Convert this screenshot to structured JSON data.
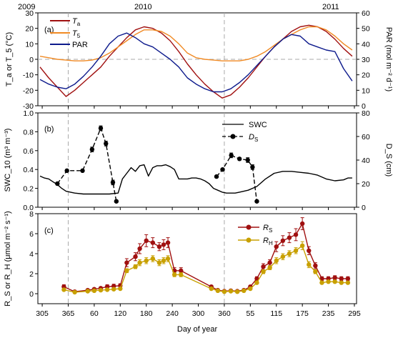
{
  "chart_data": [
    {
      "panel": "(a)",
      "type": "line",
      "ylabel": "T_a or T_5 (°C)",
      "y2label": "PAR (mol m⁻² d⁻¹)",
      "ylim": [
        -30,
        30
      ],
      "y2lim": [
        0,
        60
      ],
      "yticks": [
        "-30",
        "-20",
        "-10",
        "0",
        "10",
        "20",
        "30"
      ],
      "y2ticks": [
        "0",
        "10",
        "20",
        "30",
        "40",
        "50",
        "60"
      ],
      "zero_line": true,
      "legend": [
        "T_a",
        "T_5",
        "PAR"
      ],
      "legend_position": "top-left",
      "colors": {
        "Ta": "#a01010",
        "T5": "#f08a24",
        "PAR": "#0d1a8c"
      },
      "series": [
        {
          "name": "T_a",
          "axis": "left",
          "color": "#a01010",
          "x": [
            300,
            320,
            340,
            360,
            380,
            400,
            420,
            440,
            460,
            480,
            500,
            520,
            540,
            560,
            580,
            600,
            620,
            640,
            660,
            680,
            700,
            720,
            740,
            760,
            780,
            800,
            820,
            840,
            860,
            880,
            900,
            920,
            940,
            960,
            980,
            1000,
            1020
          ],
          "y": [
            -5,
            -12,
            -18,
            -24,
            -20,
            -15,
            -10,
            -5,
            2,
            8,
            14,
            19,
            21,
            20,
            17,
            12,
            5,
            -3,
            -10,
            -16,
            -21,
            -25,
            -23,
            -18,
            -12,
            -5,
            2,
            8,
            13,
            18,
            21,
            22,
            21,
            18,
            13,
            7,
            2
          ]
        },
        {
          "name": "T_5",
          "axis": "left",
          "color": "#f08a24",
          "x": [
            300,
            320,
            340,
            360,
            380,
            400,
            420,
            440,
            460,
            480,
            500,
            520,
            540,
            560,
            580,
            600,
            620,
            640,
            660,
            680,
            700,
            720,
            740,
            760,
            780,
            800,
            820,
            840,
            860,
            880,
            900,
            920,
            940,
            960,
            980,
            1000,
            1020
          ],
          "y": [
            2,
            1,
            0,
            -0.5,
            -1,
            -1,
            -0.5,
            1,
            4,
            8,
            12,
            16,
            19,
            19,
            18,
            15,
            10,
            4,
            1,
            0,
            -0.5,
            -1,
            -1,
            -1,
            0,
            2,
            5,
            9,
            13,
            16,
            19,
            21,
            21,
            19,
            15,
            10,
            6
          ]
        },
        {
          "name": "PAR",
          "axis": "right",
          "color": "#0d1a8c",
          "x": [
            300,
            320,
            340,
            360,
            380,
            400,
            420,
            440,
            460,
            480,
            500,
            520,
            540,
            560,
            580,
            600,
            620,
            640,
            660,
            680,
            700,
            720,
            740,
            760,
            780,
            800,
            820,
            840,
            860,
            880,
            900,
            920,
            940,
            960,
            980,
            1000,
            1020
          ],
          "y": [
            17,
            14,
            12,
            11,
            14,
            19,
            25,
            32,
            40,
            45,
            47,
            44,
            40,
            38,
            34,
            30,
            25,
            18,
            14,
            11,
            9,
            9,
            11,
            15,
            20,
            26,
            32,
            38,
            43,
            46,
            45,
            40,
            38,
            36,
            35,
            24,
            16
          ]
        }
      ]
    },
    {
      "panel": "(b)",
      "type": "line",
      "ylabel": "SWC_10 (m³ m⁻³)",
      "y2label": "D_S (cm)",
      "ylim": [
        0,
        1.0
      ],
      "y2lim": [
        0,
        80
      ],
      "yticks": [
        "0.0",
        "0.2",
        "0.4",
        "0.6",
        "0.8",
        "1.0"
      ],
      "y2ticks": [
        "0",
        "20",
        "40",
        "60",
        "80"
      ],
      "legend": [
        "SWC",
        "D_S"
      ],
      "legend_position": "top-right",
      "series": [
        {
          "name": "SWC",
          "axis": "left",
          "color": "#000000",
          "x": [
            300,
            310,
            320,
            330,
            340,
            350,
            360,
            370,
            380,
            400,
            420,
            440,
            460,
            480,
            490,
            500,
            510,
            520,
            530,
            540,
            550,
            560,
            570,
            580,
            590,
            600,
            610,
            620,
            630,
            640,
            650,
            660,
            670,
            680,
            690,
            700,
            710,
            720,
            730,
            740,
            750,
            760,
            780,
            800,
            820,
            840,
            860,
            880,
            900,
            920,
            940,
            960,
            980,
            1000,
            1010,
            1020
          ],
          "y": [
            0.33,
            0.31,
            0.3,
            0.27,
            0.24,
            0.2,
            0.17,
            0.16,
            0.15,
            0.14,
            0.14,
            0.14,
            0.14,
            0.15,
            0.3,
            0.36,
            0.42,
            0.38,
            0.44,
            0.45,
            0.33,
            0.42,
            0.44,
            0.44,
            0.45,
            0.43,
            0.4,
            0.3,
            0.3,
            0.3,
            0.31,
            0.31,
            0.3,
            0.28,
            0.25,
            0.2,
            0.18,
            0.16,
            0.15,
            0.15,
            0.15,
            0.16,
            0.18,
            0.22,
            0.3,
            0.36,
            0.38,
            0.38,
            0.37,
            0.36,
            0.34,
            0.3,
            0.28,
            0.29,
            0.31,
            0.31
          ]
        },
        {
          "name": "D_S",
          "axis": "right",
          "color": "#000000",
          "x": [
            340,
            362,
            398,
            420,
            440,
            452,
            468,
            476
          ],
          "y": [
            20,
            31,
            31,
            49,
            67,
            54,
            21,
            5
          ],
          "err": [
            1,
            1,
            1,
            2,
            2,
            2,
            2,
            1
          ]
        },
        {
          "name": "D_S",
          "axis": "right",
          "color": "#000000",
          "x": [
            707,
            721,
            741,
            760,
            779,
            790,
            800
          ],
          "y": [
            26,
            32,
            44,
            41,
            40,
            34,
            5
          ],
          "err": [
            1,
            1,
            2,
            1,
            2,
            2,
            1
          ]
        }
      ]
    },
    {
      "panel": "(c)",
      "type": "line",
      "ylabel": "R_S or R_H (μmol m⁻² s⁻¹)",
      "ylim": [
        -1,
        8
      ],
      "yticks": [
        "0",
        "2",
        "4",
        "6",
        "8"
      ],
      "legend": [
        "R_S",
        "R_H"
      ],
      "legend_position": "top-center",
      "series": [
        {
          "name": "R_S",
          "axis": "left",
          "color": "#a01010",
          "x": [
            355,
            380,
            410,
            425,
            440,
            455,
            470,
            485,
            500,
            520,
            530,
            545,
            560,
            575,
            585,
            595,
            610,
            625,
            695,
            710,
            725,
            740,
            755,
            770,
            785,
            800,
            815,
            830,
            845,
            860,
            875,
            890,
            905,
            920,
            935,
            950,
            965,
            980,
            995,
            1010
          ],
          "y": [
            0.7,
            0.2,
            0.35,
            0.45,
            0.55,
            0.7,
            0.75,
            0.8,
            3.1,
            3.7,
            4.5,
            5.3,
            5.1,
            4.7,
            4.9,
            5.1,
            2.3,
            2.3,
            0.7,
            0.35,
            0.25,
            0.3,
            0.25,
            0.35,
            0.7,
            1.5,
            2.7,
            3.1,
            4.7,
            5.3,
            5.6,
            5.9,
            7.0,
            4.3,
            2.8,
            1.5,
            1.5,
            1.6,
            1.5,
            1.5
          ],
          "err": [
            0.2,
            0.1,
            0.1,
            0.1,
            0.1,
            0.2,
            0.2,
            0.2,
            0.4,
            0.4,
            0.5,
            0.6,
            0.5,
            0.4,
            0.5,
            0.5,
            0.3,
            0.3,
            0.1,
            0.1,
            0.1,
            0.1,
            0.1,
            0.1,
            0.1,
            0.2,
            0.3,
            0.3,
            0.5,
            0.5,
            0.5,
            0.6,
            0.6,
            0.4,
            0.3,
            0.2,
            0.2,
            0.2,
            0.2,
            0.2
          ]
        },
        {
          "name": "R_H",
          "axis": "left",
          "color": "#c8a000",
          "x": [
            355,
            380,
            410,
            425,
            440,
            455,
            470,
            485,
            500,
            520,
            530,
            545,
            560,
            575,
            585,
            595,
            610,
            625,
            695,
            710,
            725,
            740,
            755,
            770,
            785,
            800,
            815,
            830,
            845,
            860,
            875,
            890,
            905,
            920,
            935,
            950,
            965,
            980,
            995,
            1010
          ],
          "y": [
            0.4,
            0.15,
            0.25,
            0.3,
            0.35,
            0.4,
            0.45,
            0.5,
            2.3,
            2.7,
            3.1,
            3.3,
            3.5,
            3.1,
            3.3,
            3.5,
            1.9,
            1.9,
            0.5,
            0.3,
            0.2,
            0.25,
            0.2,
            0.3,
            0.5,
            1.1,
            2.2,
            2.6,
            3.3,
            3.7,
            4.0,
            4.3,
            4.8,
            2.9,
            2.2,
            1.1,
            1.2,
            1.2,
            1.1,
            1.1
          ],
          "err": [
            0.1,
            0.1,
            0.1,
            0.1,
            0.1,
            0.1,
            0.1,
            0.1,
            0.2,
            0.2,
            0.3,
            0.3,
            0.3,
            0.3,
            0.3,
            0.3,
            0.2,
            0.2,
            0.1,
            0.1,
            0.1,
            0.1,
            0.1,
            0.1,
            0.1,
            0.1,
            0.2,
            0.2,
            0.3,
            0.3,
            0.3,
            0.3,
            0.4,
            0.3,
            0.2,
            0.1,
            0.1,
            0.1,
            0.1,
            0.1
          ]
        }
      ]
    }
  ],
  "shared_x": {
    "label": "Day of year",
    "tick_labels": [
      "305",
      "365",
      "60",
      "120",
      "180",
      "240",
      "300",
      "360",
      "55",
      "115",
      "175",
      "235",
      "295"
    ],
    "tick_continuous_days": [
      305,
      365,
      425,
      485,
      545,
      605,
      665,
      725,
      785,
      845,
      905,
      965,
      1025
    ],
    "xlim": [
      295,
      1030
    ],
    "year_labels": [
      {
        "text": "2009",
        "day": 315
      },
      {
        "text": "2010",
        "day": 545
      },
      {
        "text": "2011",
        "day": 905
      }
    ],
    "dashed_dividers_day": [
      365,
      725
    ]
  },
  "panel_labels": [
    "(a)",
    "(b)",
    "(c)"
  ],
  "legend_text": {
    "a": {
      "Ta": "T",
      "Ta_sub": "a",
      "T5": "T",
      "T5_sub": "5",
      "PAR": "PAR"
    },
    "b": {
      "SWC": "SWC",
      "DS": "D",
      "DS_sub": "S"
    },
    "c": {
      "RS": "R",
      "RS_sub": "S",
      "RH": "R",
      "RH_sub": "H"
    }
  },
  "axis_text": {
    "a_left": "T_a or T_5 (°C)",
    "a_right": "PAR (mol m⁻² d⁻¹)",
    "b_left": "SWC_10 (m³ m⁻³)",
    "b_right": "D_S (cm)",
    "c_left": "R_S or R_H (μmol m⁻² s⁻¹)"
  }
}
